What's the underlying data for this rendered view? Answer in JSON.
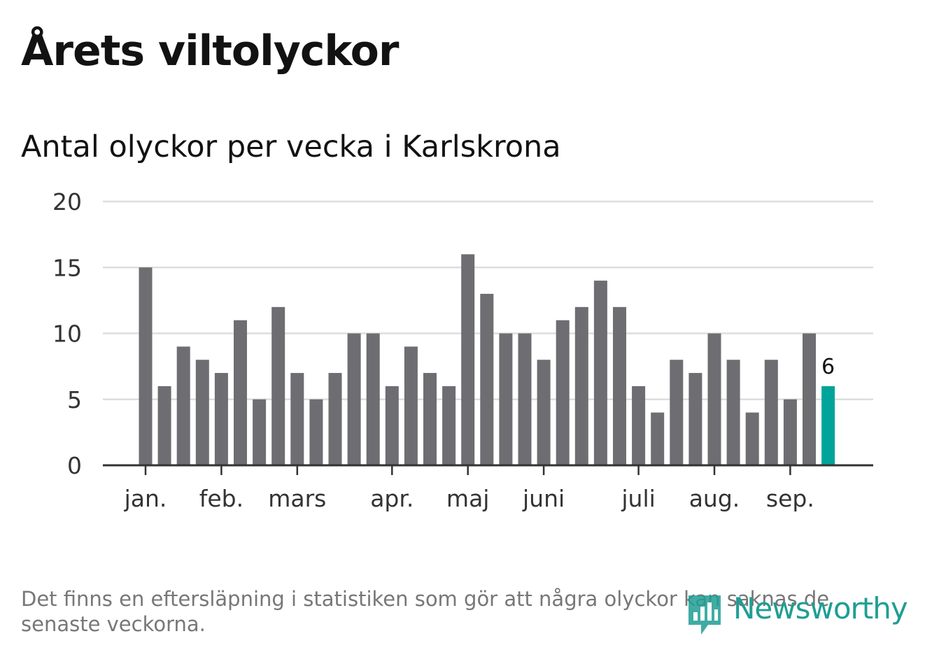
{
  "title": "Årets viltolyckor",
  "subtitle": "Antal olyckor per vecka i Karlskrona",
  "footnote": "Det finns en eftersläpning i statistiken som gör att några olyckor kan saknas de senaste veckorna.",
  "brand": {
    "name": "Newsworthy",
    "icon": "newsworthy-logo-icon",
    "color": "#1f9e94"
  },
  "colors": {
    "bar": "#6d6d72",
    "highlight": "#00a49a",
    "grid": "#dddddd",
    "axis": "#333333"
  },
  "chart_data": {
    "type": "bar",
    "values": [
      15,
      6,
      9,
      8,
      7,
      11,
      5,
      12,
      7,
      5,
      7,
      10,
      10,
      6,
      9,
      7,
      6,
      16,
      13,
      10,
      10,
      8,
      11,
      12,
      14,
      12,
      6,
      4,
      8,
      7,
      10,
      8,
      4,
      8,
      5,
      10,
      6
    ],
    "highlight_index": 36,
    "highlight_label": "6",
    "ylim": [
      0,
      20
    ],
    "yticks": [
      0,
      5,
      10,
      15,
      20
    ],
    "grid": true,
    "month_ticks": [
      {
        "label": "jan.",
        "week_index": 0
      },
      {
        "label": "feb.",
        "week_index": 4
      },
      {
        "label": "mars",
        "week_index": 8
      },
      {
        "label": "apr.",
        "week_index": 13
      },
      {
        "label": "maj",
        "week_index": 17
      },
      {
        "label": "juni",
        "week_index": 21
      },
      {
        "label": "juli",
        "week_index": 26
      },
      {
        "label": "aug.",
        "week_index": 30
      },
      {
        "label": "sep.",
        "week_index": 34
      }
    ]
  }
}
